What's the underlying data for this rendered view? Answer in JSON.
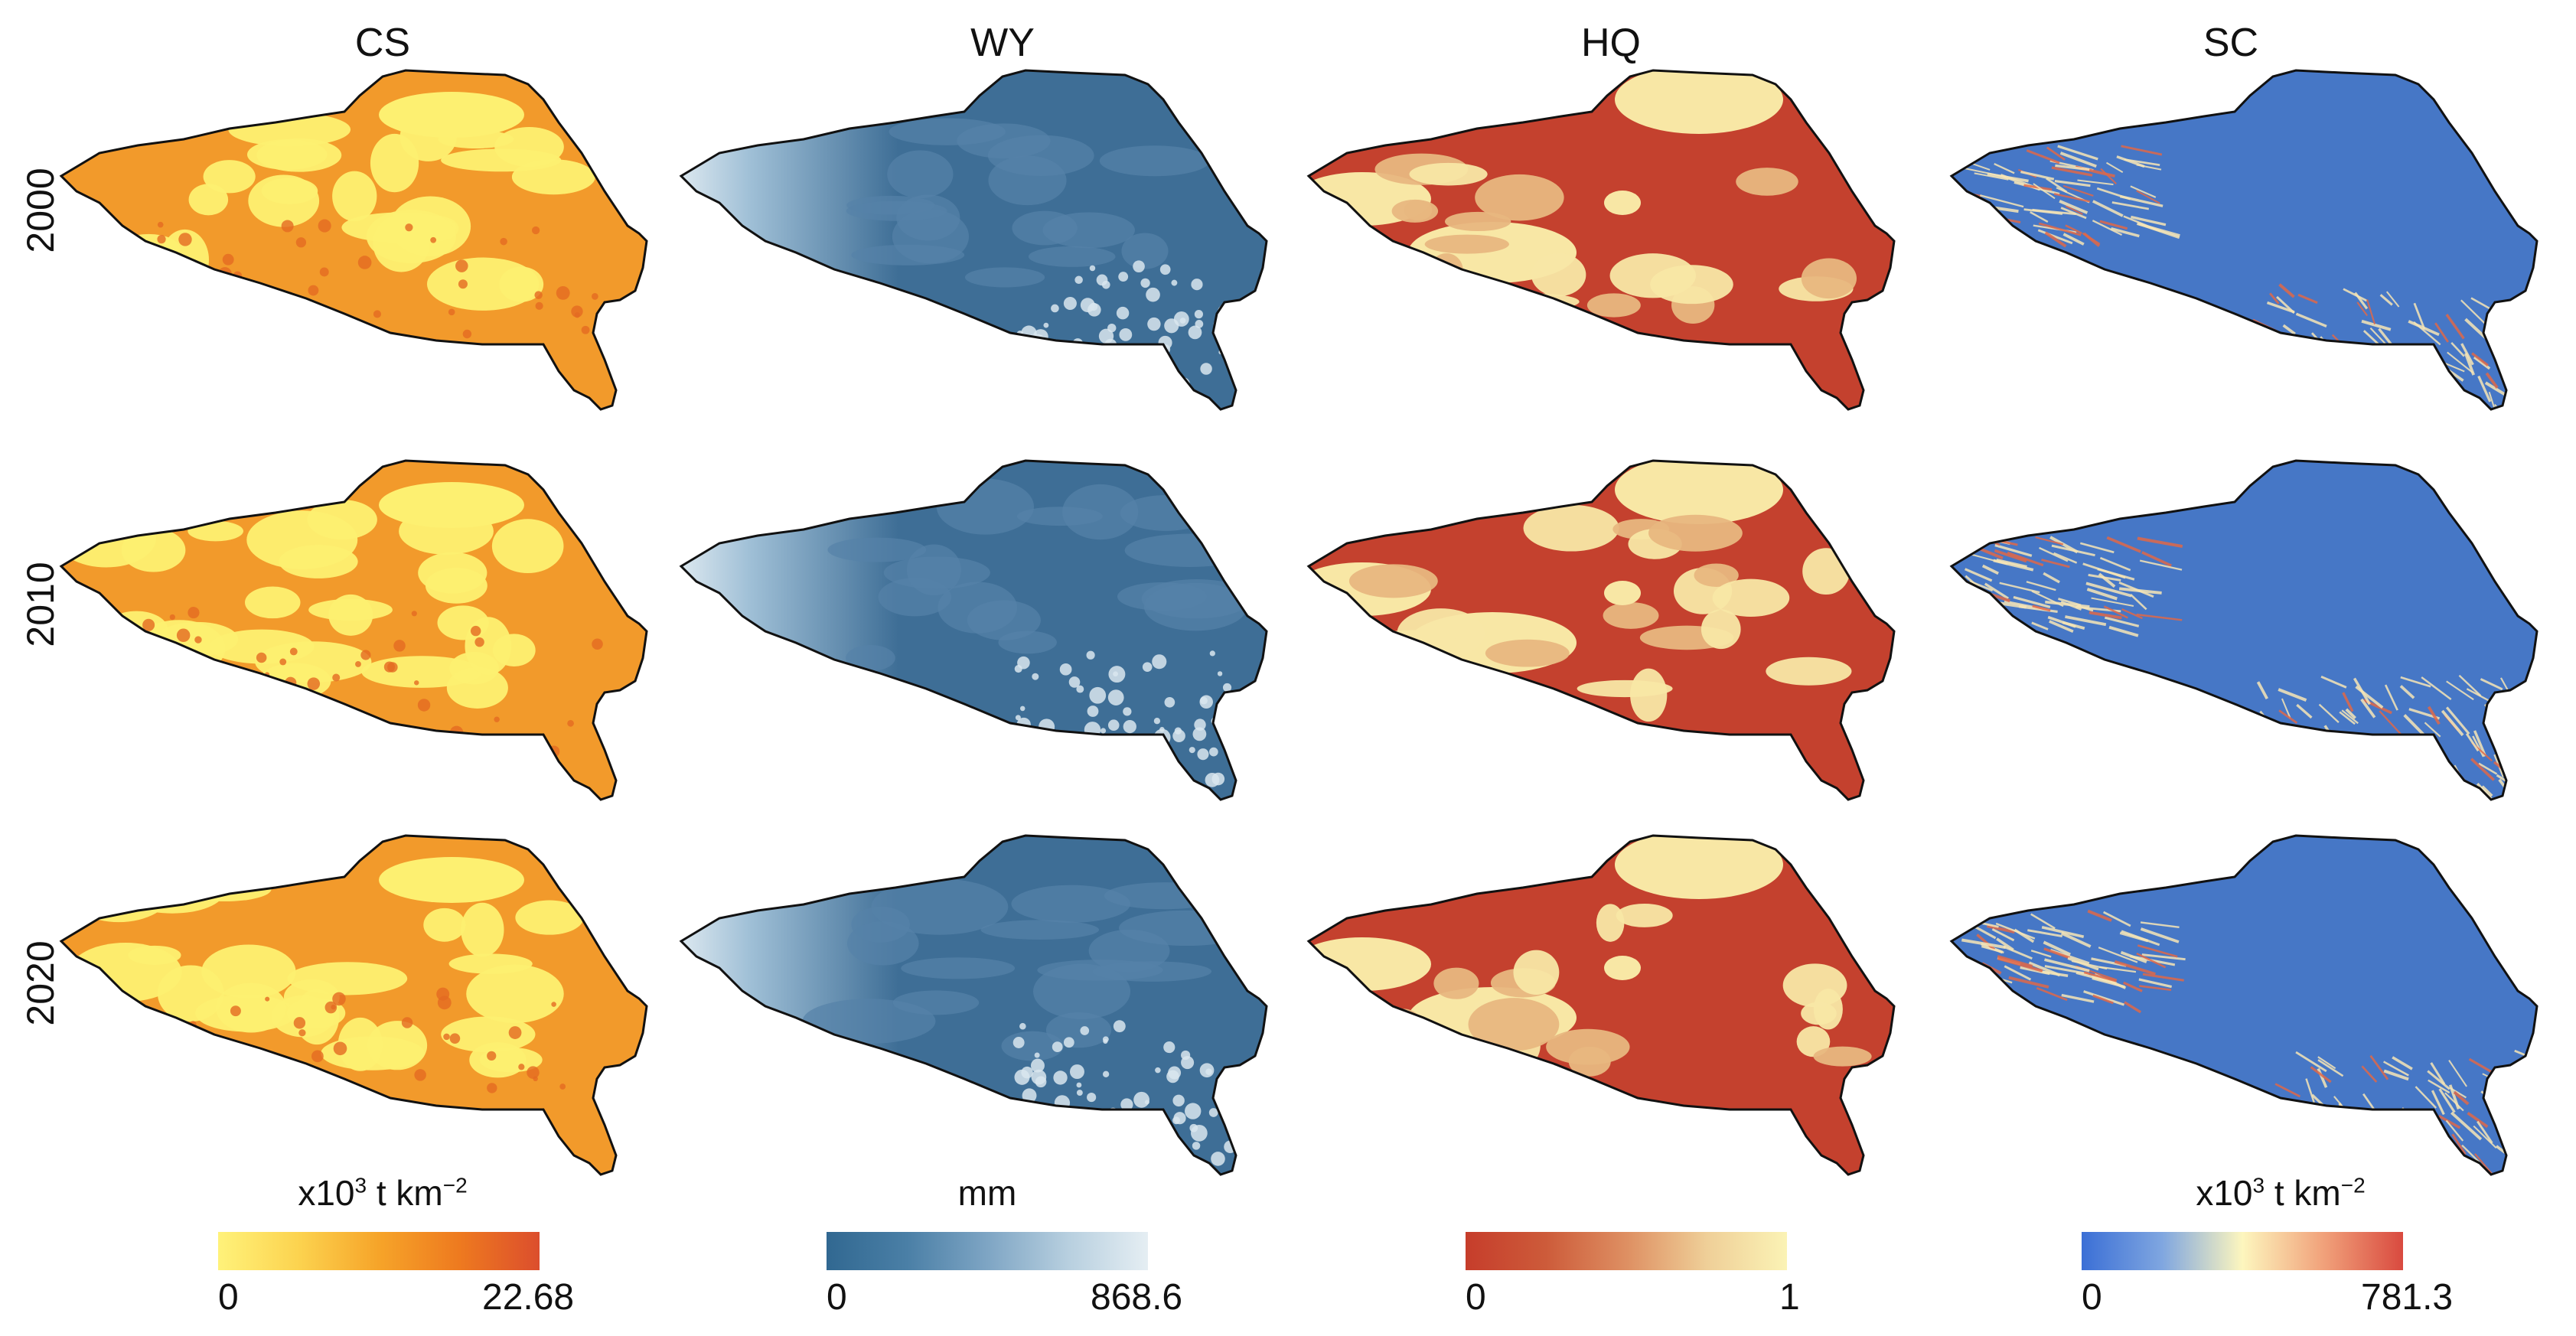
{
  "columns": [
    {
      "title": "CS",
      "unit_prefix": "x10",
      "unit_exp": "3",
      "unit_suffix": " t km",
      "unit_exp2": "−2",
      "unit_text": "",
      "range": {
        "min": "0",
        "max": "22.68"
      },
      "gradient": [
        "#fff27a",
        "#fcd34f",
        "#f6a429",
        "#ee7a1f",
        "#dc4e2d"
      ]
    },
    {
      "title": "WY",
      "unit_text": "mm",
      "range": {
        "min": "0",
        "max": "868.6"
      },
      "gradient": [
        "#316891",
        "#4a7fa6",
        "#7ea5c4",
        "#b7cfdf",
        "#e5eef3"
      ]
    },
    {
      "title": "HQ",
      "unit_text": "",
      "range": {
        "min": "0",
        "max": "1"
      },
      "gradient": [
        "#c63d2b",
        "#cd5b3a",
        "#de8f62",
        "#efcf98",
        "#fbf3b5"
      ]
    },
    {
      "title": "SC",
      "unit_prefix": "x10",
      "unit_exp": "3",
      "unit_suffix": " t km",
      "unit_exp2": "−2",
      "unit_text": "",
      "range": {
        "min": "0",
        "max": "781.3"
      },
      "gradient": [
        "#3b6fd6",
        "#7fa6e0",
        "#fdf6be",
        "#f1a27b",
        "#d94a3f"
      ]
    }
  ],
  "rows": [
    {
      "year": "2000"
    },
    {
      "year": "2010"
    },
    {
      "year": "2020"
    }
  ],
  "map_colors": {
    "CS": {
      "base": "#f29a2b",
      "patch": "#fdf071",
      "dark": "#e36a22"
    },
    "WY": {
      "base": "#3e6e96",
      "patch": "#5582a8",
      "light": "#d9e6ee"
    },
    "HQ": {
      "base": "#c4412e",
      "patch": "#f8e7a5",
      "mid": "#e8b780"
    },
    "SC": {
      "base": "#4677c6",
      "streak_light": "#f7e6b6",
      "streak_red": "#e06848"
    }
  }
}
